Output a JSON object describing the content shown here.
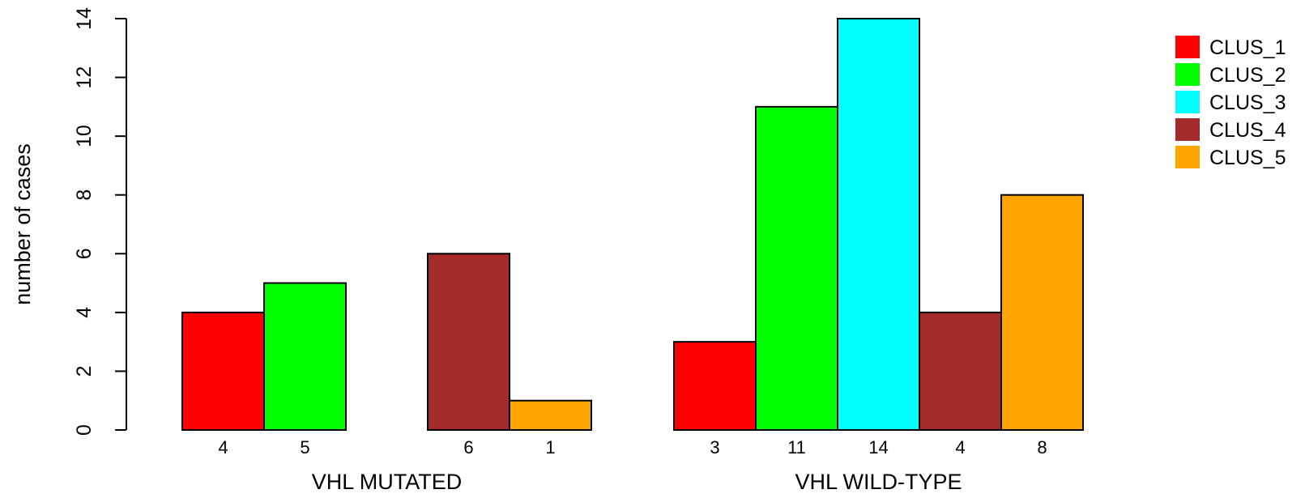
{
  "chart_data": {
    "type": "bar",
    "ylabel": "number of cases",
    "ylim": [
      0,
      14
    ],
    "yticks": [
      0,
      2,
      4,
      6,
      8,
      10,
      12,
      14
    ],
    "categories": [
      "VHL MUTATED",
      "VHL WILD-TYPE"
    ],
    "series": [
      {
        "name": "CLUS_1",
        "color": "#ff0000",
        "values": [
          4,
          3
        ]
      },
      {
        "name": "CLUS_2",
        "color": "#00ff00",
        "values": [
          5,
          11
        ]
      },
      {
        "name": "CLUS_3",
        "color": "#00ffff",
        "values": [
          0,
          14
        ]
      },
      {
        "name": "CLUS_4",
        "color": "#a52a2a",
        "values": [
          6,
          4
        ]
      },
      {
        "name": "CLUS_5",
        "color": "#ffa500",
        "values": [
          1,
          8
        ]
      }
    ],
    "bar_labels": [
      [
        "4",
        "5",
        "",
        "6",
        "1"
      ],
      [
        "3",
        "11",
        "14",
        "4",
        "8"
      ]
    ],
    "legend": {
      "position": "top-right"
    },
    "grid": false
  }
}
